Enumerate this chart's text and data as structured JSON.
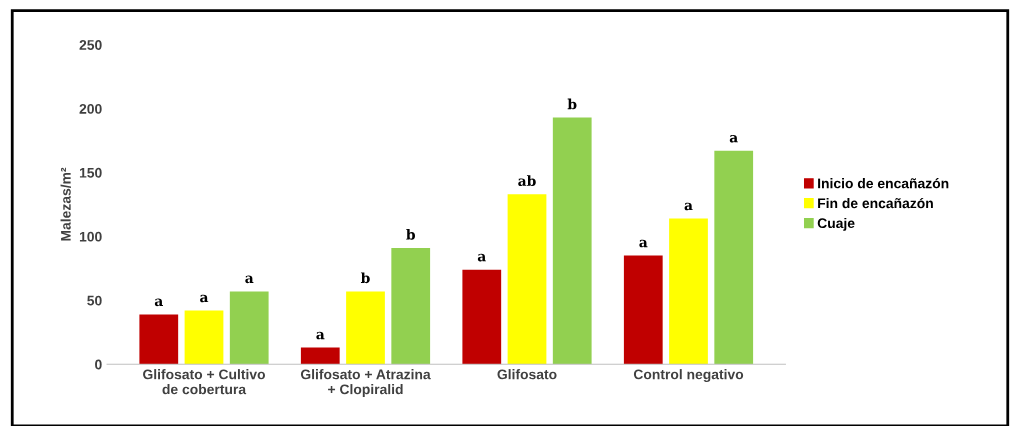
{
  "chart_data": {
    "type": "bar",
    "ylabel": "Malezas/m²",
    "categories": [
      "Glifosato + Cultivo\nde cobertura",
      "Glifosato + Atrazina\n+ Clopiralid",
      "Glifosato",
      "Control negativo"
    ],
    "series": [
      {
        "name": "Inicio de encañazón",
        "color": "#c00000",
        "values": [
          39,
          13,
          74,
          85
        ],
        "value_labels": [
          "a",
          "a",
          "a",
          "a"
        ]
      },
      {
        "name": "Fin de encañazón",
        "color": "#ffff00",
        "values": [
          42,
          57,
          133,
          114
        ],
        "value_labels": [
          "a",
          "b",
          "ab",
          "a"
        ]
      },
      {
        "name": "Cuaje",
        "color": "#92d050",
        "values": [
          57,
          91,
          193,
          167
        ],
        "value_labels": [
          "a",
          "b",
          "b",
          "a"
        ]
      }
    ],
    "ylim": [
      0,
      250
    ],
    "yticks": [
      0,
      50,
      100,
      150,
      200,
      250
    ],
    "grid": false,
    "legend": "right"
  }
}
